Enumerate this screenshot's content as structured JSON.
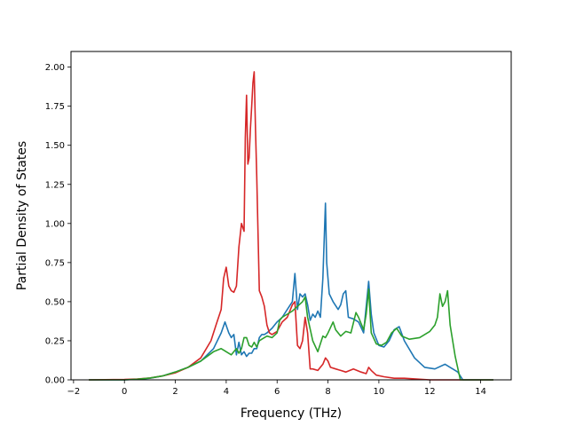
{
  "chart_data": {
    "type": "line",
    "title": "",
    "xlabel": "Frequency (THz)",
    "ylabel": "Partial Density of States",
    "xlim": [
      -2.1,
      15.2
    ],
    "ylim": [
      0,
      2.1
    ],
    "xticks": [
      -2,
      0,
      2,
      4,
      6,
      8,
      10,
      12,
      14
    ],
    "xtick_labels": [
      "−2",
      "0",
      "2",
      "4",
      "6",
      "8",
      "10",
      "12",
      "14"
    ],
    "yticks": [
      0,
      0.25,
      0.5,
      0.75,
      1.0,
      1.25,
      1.5,
      1.75,
      2.0
    ],
    "ytick_labels": [
      "0.00",
      "0.25",
      "0.50",
      "0.75",
      "1.00",
      "1.25",
      "1.50",
      "1.75",
      "2.00"
    ],
    "grid": false,
    "legend": "none",
    "series": [
      {
        "color": "#1f77b4",
        "x": [
          -1.4,
          0.0,
          0.5,
          1.0,
          1.5,
          2.0,
          2.5,
          3.0,
          3.5,
          3.8,
          3.95,
          4.1,
          4.2,
          4.3,
          4.4,
          4.5,
          4.6,
          4.7,
          4.8,
          4.9,
          5.0,
          5.1,
          5.2,
          5.3,
          5.4,
          5.5,
          5.6,
          5.8,
          6.0,
          6.2,
          6.4,
          6.6,
          6.7,
          6.8,
          6.9,
          7.0,
          7.1,
          7.2,
          7.3,
          7.4,
          7.5,
          7.6,
          7.7,
          7.8,
          7.9,
          7.95,
          8.05,
          8.2,
          8.4,
          8.5,
          8.6,
          8.7,
          8.8,
          9.0,
          9.2,
          9.4,
          9.6,
          9.7,
          9.8,
          10.0,
          10.2,
          10.4,
          10.6,
          10.8,
          11.0,
          11.4,
          11.8,
          12.2,
          12.6,
          12.9,
          13.1,
          13.3,
          14.5
        ],
        "values": [
          0.0,
          0.0,
          0.003,
          0.01,
          0.025,
          0.05,
          0.08,
          0.12,
          0.2,
          0.3,
          0.37,
          0.3,
          0.27,
          0.29,
          0.16,
          0.24,
          0.16,
          0.18,
          0.15,
          0.17,
          0.17,
          0.2,
          0.2,
          0.27,
          0.29,
          0.29,
          0.3,
          0.33,
          0.37,
          0.4,
          0.45,
          0.5,
          0.68,
          0.45,
          0.55,
          0.53,
          0.55,
          0.48,
          0.38,
          0.42,
          0.4,
          0.44,
          0.4,
          0.65,
          1.13,
          0.75,
          0.55,
          0.5,
          0.45,
          0.48,
          0.55,
          0.57,
          0.4,
          0.39,
          0.37,
          0.3,
          0.63,
          0.42,
          0.3,
          0.22,
          0.21,
          0.25,
          0.32,
          0.34,
          0.25,
          0.14,
          0.08,
          0.07,
          0.1,
          0.07,
          0.05,
          0.0,
          0.0
        ]
      },
      {
        "color": "#d62728",
        "x": [
          -1.4,
          0.0,
          0.5,
          1.0,
          1.5,
          2.0,
          2.5,
          3.0,
          3.4,
          3.6,
          3.8,
          3.9,
          4.0,
          4.1,
          4.2,
          4.3,
          4.4,
          4.5,
          4.6,
          4.7,
          4.75,
          4.8,
          4.85,
          4.9,
          4.95,
          5.0,
          5.05,
          5.1,
          5.15,
          5.2,
          5.3,
          5.4,
          5.5,
          5.6,
          5.7,
          5.8,
          6.0,
          6.2,
          6.4,
          6.6,
          6.7,
          6.8,
          6.9,
          7.0,
          7.1,
          7.2,
          7.3,
          7.4,
          7.6,
          7.8,
          7.9,
          8.0,
          8.1,
          8.3,
          8.5,
          8.7,
          9.0,
          9.3,
          9.5,
          9.6,
          9.7,
          9.9,
          10.2,
          10.6,
          11.0,
          12.0,
          13.0,
          14.5
        ],
        "values": [
          0.0,
          0.002,
          0.005,
          0.012,
          0.025,
          0.045,
          0.08,
          0.14,
          0.25,
          0.35,
          0.45,
          0.65,
          0.72,
          0.6,
          0.57,
          0.56,
          0.6,
          0.85,
          1.0,
          0.95,
          1.55,
          1.82,
          1.38,
          1.42,
          1.6,
          1.75,
          1.9,
          1.97,
          1.6,
          1.3,
          0.57,
          0.53,
          0.47,
          0.35,
          0.3,
          0.29,
          0.31,
          0.37,
          0.4,
          0.48,
          0.5,
          0.22,
          0.2,
          0.25,
          0.4,
          0.3,
          0.07,
          0.07,
          0.06,
          0.1,
          0.14,
          0.12,
          0.08,
          0.07,
          0.06,
          0.05,
          0.07,
          0.05,
          0.04,
          0.08,
          0.06,
          0.03,
          0.02,
          0.01,
          0.01,
          0.0,
          0.0,
          0.0
        ]
      },
      {
        "color": "#2ca02c",
        "x": [
          -1.4,
          0.0,
          0.5,
          1.0,
          1.5,
          2.0,
          2.5,
          3.0,
          3.5,
          3.8,
          4.0,
          4.2,
          4.4,
          4.5,
          4.6,
          4.7,
          4.8,
          4.9,
          5.0,
          5.1,
          5.2,
          5.3,
          5.4,
          5.6,
          5.8,
          6.0,
          6.1,
          6.2,
          6.4,
          6.6,
          6.8,
          7.0,
          7.1,
          7.2,
          7.4,
          7.6,
          7.8,
          7.9,
          8.0,
          8.2,
          8.3,
          8.5,
          8.7,
          8.9,
          9.1,
          9.2,
          9.4,
          9.5,
          9.6,
          9.7,
          9.9,
          10.1,
          10.3,
          10.5,
          10.7,
          10.9,
          11.2,
          11.6,
          12.0,
          12.2,
          12.3,
          12.4,
          12.5,
          12.6,
          12.7,
          12.8,
          13.0,
          13.2,
          14.5
        ],
        "values": [
          0.0,
          0.0,
          0.004,
          0.012,
          0.025,
          0.05,
          0.08,
          0.12,
          0.18,
          0.2,
          0.18,
          0.16,
          0.2,
          0.17,
          0.2,
          0.27,
          0.27,
          0.22,
          0.21,
          0.24,
          0.21,
          0.25,
          0.26,
          0.28,
          0.27,
          0.3,
          0.38,
          0.4,
          0.42,
          0.44,
          0.47,
          0.5,
          0.53,
          0.4,
          0.25,
          0.18,
          0.28,
          0.27,
          0.3,
          0.37,
          0.32,
          0.28,
          0.31,
          0.3,
          0.43,
          0.4,
          0.32,
          0.42,
          0.58,
          0.3,
          0.23,
          0.22,
          0.24,
          0.3,
          0.33,
          0.28,
          0.26,
          0.27,
          0.31,
          0.35,
          0.4,
          0.55,
          0.47,
          0.5,
          0.57,
          0.35,
          0.15,
          0.0,
          0.0
        ]
      }
    ]
  }
}
